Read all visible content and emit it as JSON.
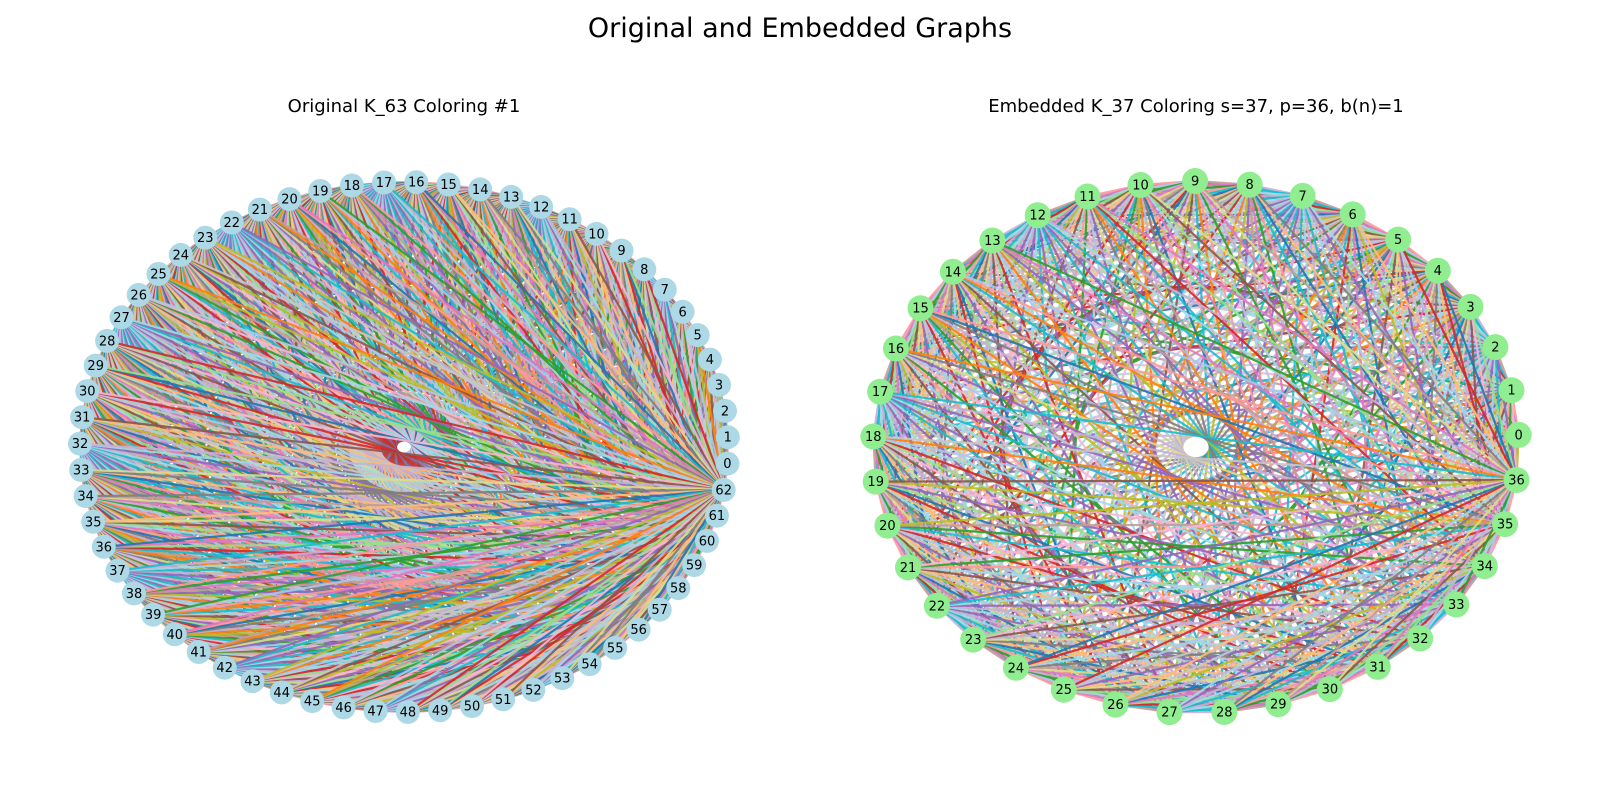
{
  "figure": {
    "title": "Original and Embedded Graphs"
  },
  "edge_palette": [
    "#1f77b4",
    "#ff7f0e",
    "#2ca02c",
    "#d62728",
    "#9467bd",
    "#8c564b",
    "#e377c2",
    "#7f7f7f",
    "#bcbd22",
    "#17becf",
    "#aec7e8",
    "#ffbb78",
    "#98df8a",
    "#ff9896",
    "#c5b0d5",
    "#c49c94",
    "#f7b6d2",
    "#c7c7c7",
    "#dbdb8d",
    "#9edae5"
  ],
  "panels": [
    {
      "id": "original",
      "title": "Original K_63 Coloring #1",
      "graph": "complete",
      "node_count": 63,
      "node_color": "#add8e6",
      "node_labels": [
        "0",
        "1",
        "2",
        "3",
        "4",
        "5",
        "6",
        "7",
        "8",
        "9",
        "10",
        "11",
        "12",
        "13",
        "14",
        "15",
        "16",
        "17",
        "18",
        "19",
        "20",
        "21",
        "22",
        "23",
        "24",
        "25",
        "26",
        "27",
        "28",
        "29",
        "30",
        "31",
        "32",
        "33",
        "34",
        "35",
        "36",
        "37",
        "38",
        "39",
        "40",
        "41",
        "42",
        "43",
        "44",
        "45",
        "46",
        "47",
        "48",
        "49",
        "50",
        "51",
        "52",
        "53",
        "54",
        "55",
        "56",
        "57",
        "58",
        "59",
        "60",
        "61",
        "62"
      ]
    },
    {
      "id": "embedded",
      "title": "Embedded K_37 Coloring s=37, p=36, b(n)=1",
      "graph": "complete",
      "node_count": 37,
      "node_color": "#90ee90",
      "node_labels": [
        "0",
        "1",
        "2",
        "3",
        "4",
        "5",
        "6",
        "7",
        "8",
        "9",
        "10",
        "11",
        "12",
        "13",
        "14",
        "15",
        "16",
        "17",
        "18",
        "19",
        "20",
        "21",
        "22",
        "23",
        "24",
        "25",
        "26",
        "27",
        "28",
        "29",
        "30",
        "31",
        "32",
        "33",
        "34",
        "35",
        "36"
      ]
    }
  ]
}
